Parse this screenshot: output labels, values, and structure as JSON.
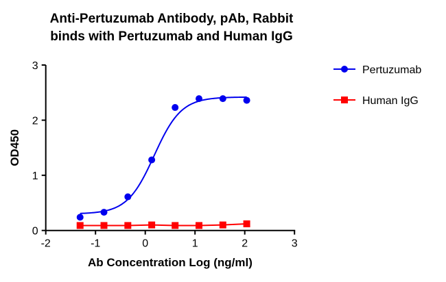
{
  "chart_data": {
    "type": "line",
    "title": [
      "Anti-Pertuzumab Antibody, pAb, Rabbit",
      "binds with Pertuzumab and Human IgG"
    ],
    "xlabel": "Ab Concentration Log (ng/ml)",
    "ylabel": "OD450",
    "xlim": [
      -2,
      3
    ],
    "ylim": [
      0,
      3
    ],
    "xticks": [
      "-2",
      "-1",
      "0",
      "1",
      "2",
      "3"
    ],
    "yticks": [
      "0",
      "1",
      "2",
      "3"
    ],
    "grid": false,
    "legend_position": "right",
    "series": [
      {
        "name": "Pertuzumab",
        "color": "#0000ee",
        "marker": "circle",
        "x": [
          -1.31,
          -0.83,
          -0.35,
          0.13,
          0.6,
          1.08,
          1.56,
          2.04
        ],
        "y": [
          0.24,
          0.33,
          0.61,
          1.28,
          2.23,
          2.39,
          2.39,
          2.36
        ],
        "fit": {
          "bottom": 0.3,
          "top": 2.42,
          "logEC50": 0.18,
          "hill": 1.6
        }
      },
      {
        "name": "Human IgG",
        "color": "#ff0000",
        "marker": "square",
        "x": [
          -1.31,
          -0.83,
          -0.35,
          0.13,
          0.6,
          1.08,
          1.56,
          2.04
        ],
        "y": [
          0.09,
          0.09,
          0.09,
          0.1,
          0.09,
          0.09,
          0.1,
          0.12
        ]
      }
    ]
  }
}
